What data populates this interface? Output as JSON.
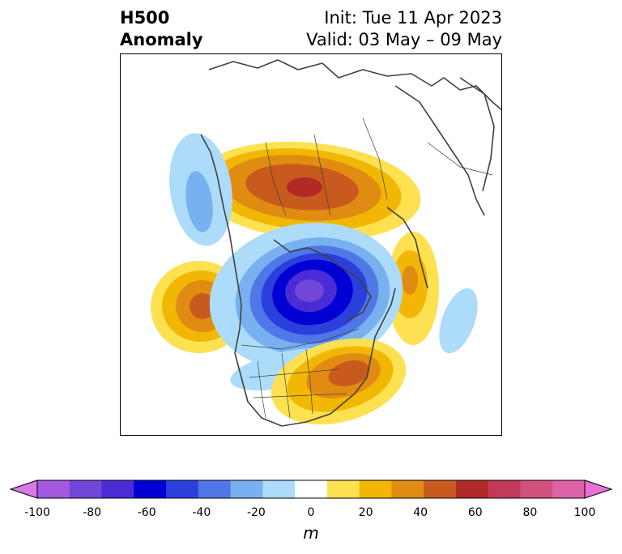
{
  "header": {
    "variable": "H500",
    "field": "Anomaly",
    "init": "Init: Tue 11 Apr 2023",
    "valid": "Valid: 03 May – 09 May"
  },
  "colorbar": {
    "unit": "m",
    "ticks": [
      "-100",
      "-80",
      "-60",
      "-40",
      "-20",
      "0",
      "20",
      "40",
      "60",
      "80",
      "100"
    ],
    "levels": [
      -100,
      -90,
      -80,
      -70,
      -60,
      -50,
      -40,
      -30,
      -20,
      -10,
      10,
      20,
      30,
      40,
      50,
      60,
      70,
      80,
      90,
      100
    ],
    "colors": [
      "#d67ae6",
      "#a259e0",
      "#7246d9",
      "#4a2bd6",
      "#0000d2",
      "#2a3fdc",
      "#4f77e6",
      "#78b0f0",
      "#acdcfa",
      "#ffffff",
      "#fde151",
      "#f2b705",
      "#e08c12",
      "#c95a1d",
      "#b22a28",
      "#c2395a",
      "#d0507e",
      "#de63a6",
      "#ea6fd6"
    ]
  },
  "anomalies": [
    {
      "name": "alaska-high",
      "value": 55
    },
    {
      "name": "pacific-high",
      "value": 45
    },
    {
      "name": "canada-low",
      "value": -85
    },
    {
      "name": "bc-low",
      "value": -25
    },
    {
      "name": "eastus-high",
      "value": 45
    },
    {
      "name": "greenland-high",
      "value": 35
    },
    {
      "name": "atlantic-low",
      "value": -15
    }
  ]
}
